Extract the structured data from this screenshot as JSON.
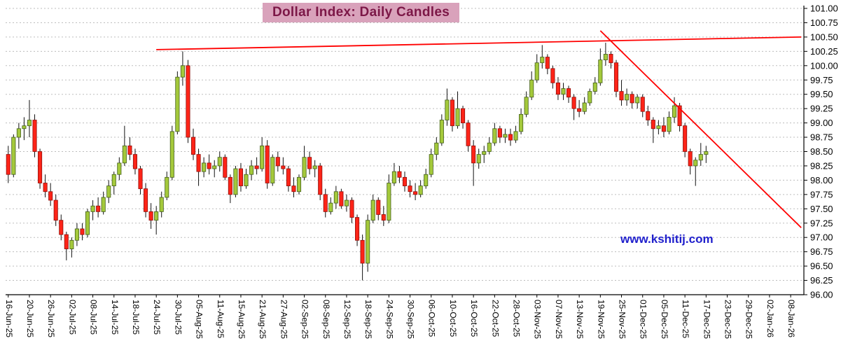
{
  "title": "Dollar Index:  Daily Candles",
  "watermark": "www.kshitij.com",
  "chart_data": {
    "type": "candlestick",
    "title": "Dollar Index: Daily Candles",
    "ylim": [
      96.0,
      101.0
    ],
    "y_tick_step": 0.25,
    "y_tick_labels": [
      "101.00",
      "100.75",
      "100.50",
      "100.25",
      "100.00",
      "99.75",
      "99.50",
      "99.25",
      "99.00",
      "98.75",
      "98.50",
      "98.25",
      "98.00",
      "97.75",
      "97.50",
      "97.25",
      "97.00",
      "96.75",
      "96.50",
      "96.25",
      "96.00"
    ],
    "x_tick_labels": [
      "16-Jun-25",
      "20-Jun-25",
      "26-Jun-25",
      "02-Jul-25",
      "08-Jul-25",
      "14-Jul-25",
      "18-Jul-25",
      "24-Jul-25",
      "30-Jul-25",
      "05-Aug-25",
      "11-Aug-25",
      "15-Aug-25",
      "21-Aug-25",
      "27-Aug-25",
      "02-Sep-25",
      "08-Sep-25",
      "12-Sep-25",
      "18-Sep-25",
      "24-Sep-25",
      "30-Sep-25",
      "06-Oct-25",
      "10-Oct-25",
      "16-Oct-25",
      "22-Oct-25",
      "28-Oct-25",
      "03-Nov-25",
      "07-Nov-25",
      "13-Nov-25",
      "19-Nov-25",
      "25-Nov-25",
      "01-Dec-25",
      "05-Dec-25",
      "11-Dec-25",
      "17-Dec-25",
      "23-Dec-25",
      "29-Dec-25",
      "02-Jan-26",
      "08-Jan-26"
    ],
    "x_tick_interval_candles": 4,
    "axis_slots": 151,
    "grid": "horizontal-dashed",
    "legend": "none",
    "columns": [
      "date",
      "open",
      "high",
      "low",
      "close"
    ],
    "candles": [
      [
        "16-Jun-25",
        98.45,
        98.6,
        97.95,
        98.1
      ],
      [
        "17-Jun-25",
        98.1,
        98.8,
        98.05,
        98.75
      ],
      [
        "18-Jun-25",
        98.75,
        99.0,
        98.55,
        98.9
      ],
      [
        "19-Jun-25",
        98.9,
        99.1,
        98.7,
        98.95
      ],
      [
        "20-Jun-25",
        98.95,
        99.4,
        98.75,
        99.05
      ],
      [
        "23-Jun-25",
        99.05,
        99.15,
        98.4,
        98.5
      ],
      [
        "24-Jun-25",
        98.5,
        98.55,
        97.85,
        97.95
      ],
      [
        "25-Jun-25",
        97.95,
        98.1,
        97.7,
        97.8
      ],
      [
        "26-Jun-25",
        97.8,
        97.95,
        97.55,
        97.65
      ],
      [
        "27-Jun-25",
        97.65,
        97.75,
        97.2,
        97.3
      ],
      [
        "30-Jun-25",
        97.3,
        97.4,
        96.95,
        97.05
      ],
      [
        "01-Jul-25",
        97.05,
        97.1,
        96.6,
        96.8
      ],
      [
        "02-Jul-25",
        96.8,
        97.0,
        96.65,
        96.95
      ],
      [
        "03-Jul-25",
        96.95,
        97.25,
        96.85,
        97.15
      ],
      [
        "04-Jul-25",
        97.15,
        97.25,
        96.95,
        97.05
      ],
      [
        "07-Jul-25",
        97.05,
        97.5,
        97.0,
        97.45
      ],
      [
        "08-Jul-25",
        97.45,
        97.65,
        97.3,
        97.55
      ],
      [
        "09-Jul-25",
        97.55,
        97.7,
        97.35,
        97.45
      ],
      [
        "10-Jul-25",
        97.45,
        97.8,
        97.4,
        97.7
      ],
      [
        "11-Jul-25",
        97.7,
        98.0,
        97.6,
        97.9
      ],
      [
        "14-Jul-25",
        97.9,
        98.15,
        97.75,
        98.1
      ],
      [
        "15-Jul-25",
        98.1,
        98.4,
        98.0,
        98.3
      ],
      [
        "16-Jul-25",
        98.3,
        98.95,
        98.25,
        98.6
      ],
      [
        "17-Jul-25",
        98.6,
        98.75,
        98.35,
        98.45
      ],
      [
        "18-Jul-25",
        98.45,
        98.55,
        98.1,
        98.2
      ],
      [
        "21-Jul-25",
        98.2,
        98.25,
        97.75,
        97.85
      ],
      [
        "22-Jul-25",
        97.85,
        97.95,
        97.35,
        97.45
      ],
      [
        "23-Jul-25",
        97.45,
        97.6,
        97.15,
        97.3
      ],
      [
        "24-Jul-25",
        97.3,
        97.55,
        97.05,
        97.45
      ],
      [
        "25-Jul-25",
        97.45,
        97.8,
        97.35,
        97.7
      ],
      [
        "28-Jul-25",
        97.7,
        98.15,
        97.65,
        98.05
      ],
      [
        "29-Jul-25",
        98.05,
        98.95,
        98.0,
        98.85
      ],
      [
        "30-Jul-25",
        98.85,
        99.9,
        98.8,
        99.8
      ],
      [
        "31-Jul-25",
        99.8,
        100.25,
        99.65,
        100.0
      ],
      [
        "01-Aug-25",
        100.0,
        100.1,
        98.65,
        98.75
      ],
      [
        "04-Aug-25",
        98.75,
        98.9,
        98.35,
        98.45
      ],
      [
        "05-Aug-25",
        98.45,
        98.55,
        97.9,
        98.15
      ],
      [
        "06-Aug-25",
        98.15,
        98.4,
        98.05,
        98.3
      ],
      [
        "07-Aug-25",
        98.3,
        98.45,
        98.1,
        98.2
      ],
      [
        "08-Aug-25",
        98.2,
        98.35,
        98.05,
        98.25
      ],
      [
        "11-Aug-25",
        98.25,
        98.5,
        98.15,
        98.4
      ],
      [
        "12-Aug-25",
        98.4,
        98.45,
        98.0,
        98.05
      ],
      [
        "13-Aug-25",
        98.05,
        98.1,
        97.6,
        97.75
      ],
      [
        "14-Aug-25",
        97.75,
        98.25,
        97.7,
        98.2
      ],
      [
        "15-Aug-25",
        98.2,
        98.3,
        97.8,
        97.9
      ],
      [
        "18-Aug-25",
        97.9,
        98.2,
        97.85,
        98.1
      ],
      [
        "19-Aug-25",
        98.1,
        98.35,
        98.0,
        98.25
      ],
      [
        "20-Aug-25",
        98.25,
        98.4,
        98.1,
        98.2
      ],
      [
        "21-Aug-25",
        98.2,
        98.75,
        98.15,
        98.6
      ],
      [
        "22-Aug-25",
        98.6,
        98.7,
        97.85,
        97.95
      ],
      [
        "25-Aug-25",
        97.95,
        98.45,
        97.9,
        98.4
      ],
      [
        "26-Aug-25",
        98.4,
        98.5,
        98.15,
        98.25
      ],
      [
        "27-Aug-25",
        98.25,
        98.4,
        98.1,
        98.2
      ],
      [
        "28-Aug-25",
        98.2,
        98.25,
        97.8,
        97.9
      ],
      [
        "29-Aug-25",
        97.9,
        98.05,
        97.7,
        97.8
      ],
      [
        "01-Sep-25",
        97.8,
        98.1,
        97.75,
        98.05
      ],
      [
        "02-Sep-25",
        98.05,
        98.6,
        98.0,
        98.4
      ],
      [
        "03-Sep-25",
        98.4,
        98.5,
        98.1,
        98.2
      ],
      [
        "04-Sep-25",
        98.2,
        98.35,
        98.05,
        98.25
      ],
      [
        "05-Sep-25",
        98.25,
        98.3,
        97.65,
        97.75
      ],
      [
        "08-Sep-25",
        97.75,
        97.85,
        97.35,
        97.45
      ],
      [
        "09-Sep-25",
        97.45,
        97.7,
        97.4,
        97.6
      ],
      [
        "10-Sep-25",
        97.6,
        97.9,
        97.5,
        97.8
      ],
      [
        "11-Sep-25",
        97.8,
        97.85,
        97.5,
        97.55
      ],
      [
        "12-Sep-25",
        97.55,
        97.75,
        97.45,
        97.65
      ],
      [
        "15-Sep-25",
        97.65,
        97.7,
        97.25,
        97.35
      ],
      [
        "16-Sep-25",
        97.35,
        97.4,
        96.85,
        96.95
      ],
      [
        "17-Sep-25",
        96.95,
        97.05,
        96.25,
        96.55
      ],
      [
        "18-Sep-25",
        96.55,
        97.4,
        96.4,
        97.3
      ],
      [
        "19-Sep-25",
        97.3,
        97.75,
        97.25,
        97.65
      ],
      [
        "22-Sep-25",
        97.65,
        97.7,
        97.3,
        97.4
      ],
      [
        "23-Sep-25",
        97.4,
        97.55,
        97.2,
        97.3
      ],
      [
        "24-Sep-25",
        97.3,
        98.1,
        97.25,
        97.95
      ],
      [
        "25-Sep-25",
        97.95,
        98.3,
        97.9,
        98.15
      ],
      [
        "26-Sep-25",
        98.15,
        98.25,
        97.95,
        98.05
      ],
      [
        "29-Sep-25",
        98.05,
        98.15,
        97.8,
        97.9
      ],
      [
        "30-Sep-25",
        97.9,
        98.0,
        97.7,
        97.8
      ],
      [
        "01-Oct-25",
        97.8,
        97.95,
        97.65,
        97.75
      ],
      [
        "02-Oct-25",
        97.75,
        98.0,
        97.7,
        97.9
      ],
      [
        "03-Oct-25",
        97.9,
        98.2,
        97.85,
        98.1
      ],
      [
        "06-Oct-25",
        98.1,
        98.55,
        98.05,
        98.45
      ],
      [
        "07-Oct-25",
        98.45,
        98.75,
        98.35,
        98.65
      ],
      [
        "08-Oct-25",
        98.65,
        99.15,
        98.6,
        99.05
      ],
      [
        "09-Oct-25",
        99.05,
        99.6,
        98.95,
        99.4
      ],
      [
        "10-Oct-25",
        99.4,
        99.45,
        98.85,
        98.95
      ],
      [
        "13-Oct-25",
        98.95,
        99.55,
        98.9,
        99.25
      ],
      [
        "14-Oct-25",
        99.25,
        99.3,
        98.9,
        99.0
      ],
      [
        "15-Oct-25",
        99.0,
        99.05,
        98.5,
        98.6
      ],
      [
        "16-Oct-25",
        98.6,
        98.7,
        97.9,
        98.3
      ],
      [
        "17-Oct-25",
        98.3,
        98.55,
        98.2,
        98.45
      ],
      [
        "20-Oct-25",
        98.45,
        98.6,
        98.3,
        98.5
      ],
      [
        "21-Oct-25",
        98.5,
        98.75,
        98.45,
        98.65
      ],
      [
        "22-Oct-25",
        98.65,
        99.0,
        98.6,
        98.9
      ],
      [
        "23-Oct-25",
        98.9,
        98.95,
        98.65,
        98.75
      ],
      [
        "24-Oct-25",
        98.75,
        98.9,
        98.65,
        98.8
      ],
      [
        "27-Oct-25",
        98.8,
        98.9,
        98.6,
        98.7
      ],
      [
        "28-Oct-25",
        98.7,
        98.95,
        98.65,
        98.85
      ],
      [
        "29-Oct-25",
        98.85,
        99.25,
        98.8,
        99.15
      ],
      [
        "30-Oct-25",
        99.15,
        99.55,
        99.1,
        99.45
      ],
      [
        "31-Oct-25",
        99.45,
        99.9,
        99.4,
        99.75
      ],
      [
        "03-Nov-25",
        99.75,
        100.2,
        99.7,
        100.05
      ],
      [
        "04-Nov-25",
        100.05,
        100.36,
        99.95,
        100.15
      ],
      [
        "05-Nov-25",
        100.15,
        100.2,
        99.85,
        99.95
      ],
      [
        "06-Nov-25",
        99.95,
        100.0,
        99.6,
        99.7
      ],
      [
        "07-Nov-25",
        99.7,
        99.8,
        99.4,
        99.5
      ],
      [
        "10-Nov-25",
        99.5,
        99.7,
        99.4,
        99.6
      ],
      [
        "11-Nov-25",
        99.6,
        99.65,
        99.35,
        99.45
      ],
      [
        "12-Nov-25",
        99.45,
        99.5,
        99.05,
        99.25
      ],
      [
        "13-Nov-25",
        99.25,
        99.4,
        99.1,
        99.2
      ],
      [
        "14-Nov-25",
        99.2,
        99.45,
        99.15,
        99.35
      ],
      [
        "17-Nov-25",
        99.35,
        99.6,
        99.3,
        99.55
      ],
      [
        "18-Nov-25",
        99.55,
        99.8,
        99.5,
        99.7
      ],
      [
        "19-Nov-25",
        99.7,
        100.3,
        99.65,
        100.1
      ],
      [
        "20-Nov-25",
        100.1,
        100.4,
        100.0,
        100.2
      ],
      [
        "21-Nov-25",
        100.2,
        100.25,
        99.95,
        100.05
      ],
      [
        "24-Nov-25",
        100.05,
        100.1,
        99.45,
        99.55
      ],
      [
        "25-Nov-25",
        99.55,
        99.75,
        99.3,
        99.4
      ],
      [
        "26-Nov-25",
        99.4,
        99.6,
        99.3,
        99.5
      ],
      [
        "27-Nov-25",
        99.5,
        99.55,
        99.25,
        99.35
      ],
      [
        "28-Nov-25",
        99.35,
        99.5,
        99.25,
        99.45
      ],
      [
        "01-Dec-25",
        99.45,
        99.5,
        99.1,
        99.2
      ],
      [
        "02-Dec-25",
        99.2,
        99.3,
        98.95,
        99.05
      ],
      [
        "03-Dec-25",
        99.05,
        99.1,
        98.65,
        98.9
      ],
      [
        "04-Dec-25",
        98.9,
        99.05,
        98.8,
        98.95
      ],
      [
        "05-Dec-25",
        98.95,
        99.1,
        98.75,
        98.85
      ],
      [
        "08-Dec-25",
        98.85,
        99.2,
        98.8,
        99.1
      ],
      [
        "09-Dec-25",
        99.1,
        99.45,
        99.0,
        99.3
      ],
      [
        "10-Dec-25",
        99.3,
        99.35,
        98.85,
        98.95
      ],
      [
        "11-Dec-25",
        98.95,
        99.0,
        98.4,
        98.5
      ],
      [
        "12-Dec-25",
        98.5,
        98.55,
        98.1,
        98.25
      ],
      [
        "15-Dec-25",
        98.25,
        98.4,
        97.9,
        98.35
      ],
      [
        "16-Dec-25",
        98.35,
        98.65,
        98.25,
        98.45
      ],
      [
        "17-Dec-25",
        98.45,
        98.6,
        98.3,
        98.5
      ]
    ],
    "trendlines": [
      {
        "name": "resistance-trendline",
        "color": "#FF0000",
        "from": {
          "index": 28,
          "price": 100.28
        },
        "to": {
          "index": 150,
          "price": 100.5
        }
      },
      {
        "name": "downtrend-trendline",
        "color": "#FF0000",
        "from": {
          "index": 112,
          "price": 100.61
        },
        "to": {
          "index": 150,
          "price": 97.17
        }
      }
    ],
    "colors": {
      "up_candle": "#A4C93B",
      "up_candle_border": "#44601A",
      "down_candle": "#FF2418",
      "down_candle_border": "#8F0F0A",
      "wick": "#111111",
      "gridline": "#BDBDBD",
      "axis": "#000000",
      "trendline": "#FF0000",
      "title_text": "#7C1747",
      "title_background": "#D9A2BB",
      "watermark_text": "#2020CC"
    }
  }
}
